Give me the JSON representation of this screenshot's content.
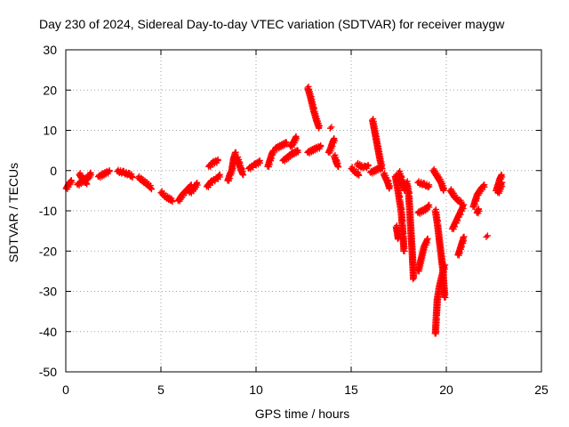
{
  "chart_data": {
    "type": "scatter",
    "title": "Day 230 of 2024, Sidereal Day-to-day VTEC variation (SDTVAR) for receiver maygw",
    "xlabel": "GPS time / hours",
    "ylabel": "SDTVAR / TECUs",
    "xlim": [
      0,
      25
    ],
    "ylim": [
      -50,
      30
    ],
    "xticks": [
      0,
      5,
      10,
      15,
      20,
      25
    ],
    "yticks": [
      -50,
      -40,
      -30,
      -20,
      -10,
      0,
      10,
      20,
      30
    ],
    "grid": true,
    "marker": "+",
    "color": "#ff0000",
    "series": [
      {
        "name": "SDTVAR",
        "segments": [
          [
            [
              0.0,
              -4.5
            ],
            [
              0.15,
              -3.2
            ],
            [
              0.3,
              -2.4
            ]
          ],
          [
            [
              0.6,
              -3.5
            ],
            [
              0.8,
              -2.8
            ],
            [
              1.0,
              -2.0
            ],
            [
              1.2,
              -1.5
            ],
            [
              1.3,
              -0.5
            ]
          ],
          [
            [
              0.7,
              -1.0
            ],
            [
              0.9,
              -2.5
            ],
            [
              1.1,
              -3.2
            ]
          ],
          [
            [
              1.7,
              -1.5
            ],
            [
              1.9,
              -1.0
            ],
            [
              2.1,
              -0.5
            ],
            [
              2.3,
              -0.2
            ]
          ],
          [
            [
              2.7,
              -0.2
            ],
            [
              3.0,
              -0.5
            ],
            [
              3.3,
              -1.0
            ],
            [
              3.5,
              -1.5
            ]
          ],
          [
            [
              3.8,
              -1.8
            ],
            [
              4.0,
              -2.5
            ],
            [
              4.2,
              -3.2
            ],
            [
              4.5,
              -4.5
            ]
          ],
          [
            [
              5.0,
              -5.5
            ],
            [
              5.2,
              -6.5
            ],
            [
              5.4,
              -7.0
            ],
            [
              5.6,
              -7.5
            ]
          ],
          [
            [
              5.9,
              -7.5
            ],
            [
              6.1,
              -6.0
            ],
            [
              6.3,
              -5.0
            ],
            [
              6.6,
              -3.5
            ]
          ],
          [
            [
              6.5,
              -5.5
            ],
            [
              6.7,
              -4.5
            ],
            [
              6.9,
              -3.0
            ]
          ],
          [
            [
              7.4,
              -4.0
            ],
            [
              7.6,
              -2.8
            ],
            [
              7.9,
              -2.0
            ],
            [
              8.1,
              -1.0
            ]
          ],
          [
            [
              7.5,
              1.0
            ],
            [
              7.7,
              2.0
            ],
            [
              8.0,
              2.5
            ]
          ],
          [
            [
              8.5,
              -2.5
            ],
            [
              8.6,
              -1.0
            ],
            [
              8.7,
              0.0
            ],
            [
              8.75,
              1.5
            ],
            [
              8.8,
              3.0
            ],
            [
              8.9,
              4.5
            ]
          ],
          [
            [
              9.0,
              3.0
            ],
            [
              9.1,
              1.5
            ],
            [
              9.2,
              0.0
            ],
            [
              9.3,
              -1.0
            ]
          ],
          [
            [
              9.6,
              0.5
            ],
            [
              9.9,
              1.5
            ],
            [
              10.1,
              2.0
            ],
            [
              10.2,
              2.5
            ]
          ],
          [
            [
              10.6,
              1.0
            ],
            [
              10.7,
              2.5
            ],
            [
              10.8,
              4.0
            ],
            [
              10.9,
              5.0
            ]
          ],
          [
            [
              11.0,
              5.5
            ],
            [
              11.2,
              6.0
            ],
            [
              11.4,
              6.5
            ],
            [
              11.6,
              7.0
            ]
          ],
          [
            [
              11.4,
              2.5
            ],
            [
              11.6,
              3.2
            ],
            [
              11.8,
              4.0
            ],
            [
              12.0,
              4.5
            ],
            [
              12.2,
              5.0
            ]
          ],
          [
            [
              11.8,
              6.0
            ],
            [
              12.0,
              7.5
            ],
            [
              12.1,
              8.5
            ]
          ],
          [
            [
              12.7,
              4.5
            ],
            [
              12.9,
              5.0
            ],
            [
              13.1,
              5.5
            ],
            [
              13.4,
              6.0
            ]
          ],
          [
            [
              12.7,
              20.5
            ],
            [
              12.85,
              18.0
            ],
            [
              13.0,
              15.0
            ],
            [
              13.15,
              12.5
            ],
            [
              13.3,
              10.5
            ]
          ],
          [
            [
              13.8,
              4.5
            ],
            [
              13.9,
              5.5
            ],
            [
              14.0,
              7.0
            ],
            [
              14.1,
              8.0
            ]
          ],
          [
            [
              13.9,
              10.5
            ]
          ],
          [
            [
              14.1,
              3.5
            ],
            [
              14.2,
              2.0
            ],
            [
              14.3,
              1.0
            ]
          ],
          [
            [
              15.0,
              0.5
            ],
            [
              15.2,
              -0.5
            ],
            [
              15.4,
              -1.0
            ]
          ],
          [
            [
              15.3,
              1.5
            ],
            [
              15.5,
              1.0
            ],
            [
              15.7,
              0.8
            ],
            [
              15.9,
              1.2
            ]
          ],
          [
            [
              16.0,
              -0.5
            ],
            [
              16.2,
              0.0
            ],
            [
              16.4,
              0.5
            ],
            [
              16.6,
              0.5
            ]
          ],
          [
            [
              16.1,
              12.5
            ],
            [
              16.2,
              10.0
            ],
            [
              16.3,
              7.5
            ],
            [
              16.4,
              5.0
            ],
            [
              16.5,
              2.5
            ],
            [
              16.6,
              0.5
            ]
          ],
          [
            [
              16.7,
              -1.0
            ],
            [
              16.9,
              -3.0
            ],
            [
              17.0,
              -4.5
            ]
          ],
          [
            [
              17.3,
              -1.5
            ],
            [
              17.4,
              -4.0
            ],
            [
              17.5,
              -7.0
            ],
            [
              17.6,
              -10.0
            ],
            [
              17.65,
              -13.0
            ],
            [
              17.7,
              -16.0
            ],
            [
              17.75,
              -20.0
            ]
          ],
          [
            [
              17.35,
              -14.0
            ],
            [
              17.4,
              -15.5
            ],
            [
              17.45,
              -17.0
            ]
          ],
          [
            [
              17.5,
              -0.5
            ],
            [
              17.6,
              -2.0
            ],
            [
              17.7,
              -3.5
            ],
            [
              17.8,
              -5.0
            ]
          ],
          [
            [
              17.9,
              -3.0
            ],
            [
              18.0,
              -6.0
            ],
            [
              18.05,
              -10.0
            ],
            [
              18.1,
              -14.0
            ],
            [
              18.15,
              -18.0
            ],
            [
              18.2,
              -22.0
            ],
            [
              18.25,
              -27.0
            ]
          ],
          [
            [
              18.5,
              -25.0
            ],
            [
              18.6,
              -23.0
            ],
            [
              18.7,
              -21.0
            ],
            [
              18.8,
              -19.0
            ],
            [
              19.0,
              -17.0
            ]
          ],
          [
            [
              18.5,
              -3.0
            ],
            [
              18.8,
              -3.5
            ],
            [
              19.1,
              -4.0
            ]
          ],
          [
            [
              18.5,
              -10.5
            ],
            [
              18.7,
              -10.0
            ],
            [
              18.9,
              -9.5
            ],
            [
              19.1,
              -8.5
            ]
          ],
          [
            [
              19.3,
              0.0
            ],
            [
              19.5,
              -1.5
            ],
            [
              19.7,
              -3.0
            ],
            [
              19.85,
              -5.0
            ]
          ],
          [
            [
              19.4,
              -10.0
            ],
            [
              19.5,
              -13.0
            ],
            [
              19.6,
              -17.0
            ],
            [
              19.7,
              -21.0
            ],
            [
              19.8,
              -25.0
            ],
            [
              19.85,
              -29.0
            ],
            [
              19.9,
              -31.5
            ]
          ],
          [
            [
              19.4,
              -40.5
            ],
            [
              19.45,
              -36.0
            ],
            [
              19.5,
              -32.0
            ],
            [
              19.6,
              -29.0
            ],
            [
              19.7,
              -27.0
            ],
            [
              19.8,
              -25.0
            ],
            [
              19.9,
              -23.5
            ]
          ],
          [
            [
              20.2,
              -5.0
            ],
            [
              20.4,
              -6.5
            ],
            [
              20.6,
              -7.5
            ],
            [
              20.8,
              -8.0
            ]
          ],
          [
            [
              20.3,
              -14.5
            ],
            [
              20.45,
              -13.0
            ],
            [
              20.6,
              -11.5
            ],
            [
              20.75,
              -10.0
            ],
            [
              20.9,
              -8.5
            ]
          ],
          [
            [
              20.6,
              -21.0
            ],
            [
              20.7,
              -19.5
            ],
            [
              20.8,
              -18.0
            ],
            [
              20.9,
              -16.5
            ]
          ],
          [
            [
              21.4,
              -9.0
            ],
            [
              21.5,
              -7.5
            ],
            [
              21.6,
              -6.0
            ],
            [
              21.8,
              -4.5
            ],
            [
              22.0,
              -3.5
            ]
          ],
          [
            [
              21.6,
              -10.5
            ],
            [
              21.7,
              -9.5
            ]
          ],
          [
            [
              22.1,
              -16.5
            ]
          ],
          [
            [
              22.6,
              -5.0
            ],
            [
              22.7,
              -3.5
            ],
            [
              22.8,
              -2.0
            ],
            [
              22.9,
              -1.0
            ]
          ],
          [
            [
              22.7,
              -5.5
            ],
            [
              22.8,
              -4.5
            ],
            [
              22.9,
              -3.0
            ]
          ]
        ]
      }
    ]
  }
}
